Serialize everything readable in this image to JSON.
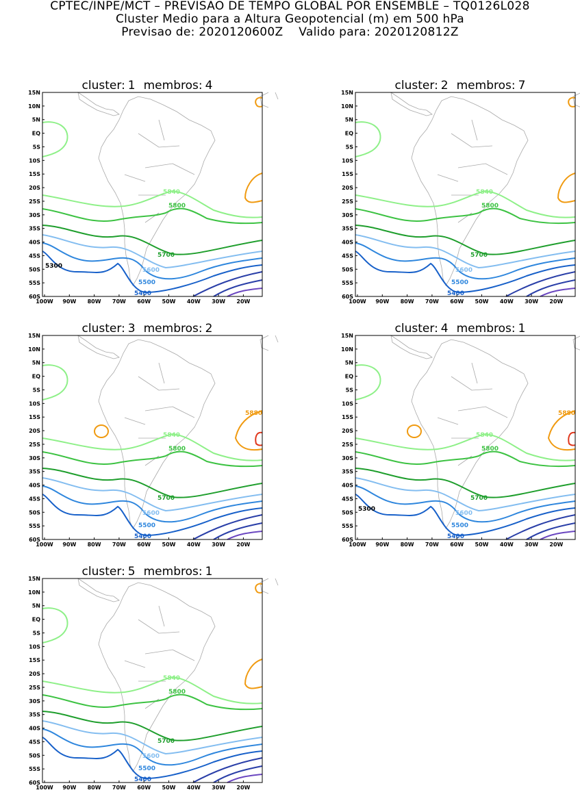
{
  "header": {
    "line1": "CPTEC/INPE/MCT – PREVISAO DE TEMPO GLOBAL POR ENSEMBLE – TQ0126L028",
    "line2": "Cluster Medio para a Altura Geopotencial (m) em 500 hPa",
    "line3": "Previsao de: 2020120600Z    Valido para: 2020120812Z"
  },
  "axes": {
    "lat_ticks": [
      "15N",
      "10N",
      "5N",
      "EQ",
      "5S",
      "10S",
      "15S",
      "20S",
      "25S",
      "30S",
      "35S",
      "40S",
      "45S",
      "50S",
      "55S",
      "60S"
    ],
    "lon_ticks": [
      "100W",
      "90W",
      "80W",
      "70W",
      "60W",
      "50W",
      "40W",
      "30W",
      "20W"
    ]
  },
  "colors": {
    "c5400": "#1760c9",
    "c5500": "#2e86dd",
    "c5600": "#83bdf0",
    "c5700": "#1e9e2c",
    "c5800": "#3cc242",
    "c5840": "#8ef088",
    "c5880": "#f09a10",
    "c5920": "#e0361b",
    "deep": "#2a3fa8",
    "purple": "#6a46c0",
    "land": "#a8a8a8"
  },
  "panels": [
    {
      "cluster_label": "cluster:",
      "cluster": "1",
      "members_label": "membros:",
      "members": "4",
      "labels": {
        "l5840": "5840",
        "l5800": "5800",
        "l5700": "5700",
        "l5600": "5600",
        "l5500": "5500",
        "l5400": "5400",
        "l5300": "5300"
      }
    },
    {
      "cluster_label": "cluster:",
      "cluster": "2",
      "members_label": "membros:",
      "members": "7",
      "labels": {
        "l5840": "5840",
        "l5800": "5800",
        "l5700": "5700",
        "l5600": "5600",
        "l5500": "5500",
        "l5400": "5400"
      }
    },
    {
      "cluster_label": "cluster:",
      "cluster": "3",
      "members_label": "membros:",
      "members": "2",
      "labels": {
        "l5840": "5840",
        "l5800": "5800",
        "l5700": "5700",
        "l5600": "5600",
        "l5500": "5500",
        "l5400": "5400",
        "l5880": "5880"
      }
    },
    {
      "cluster_label": "cluster:",
      "cluster": "4",
      "members_label": "membros:",
      "members": "1",
      "labels": {
        "l5840": "5840",
        "l5800": "5800",
        "l5700": "5700",
        "l5600": "5600",
        "l5500": "5500",
        "l5400": "5400",
        "l5880": "5880",
        "l5300": "5300"
      }
    },
    {
      "cluster_label": "cluster:",
      "cluster": "5",
      "members_label": "membros:",
      "members": "1",
      "labels": {
        "l5840": "5840",
        "l5800": "5800",
        "l5700": "5700",
        "l5600": "5600",
        "l5500": "5500",
        "l5400": "5400"
      }
    }
  ]
}
